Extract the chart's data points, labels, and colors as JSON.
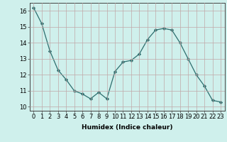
{
  "x": [
    0,
    1,
    2,
    3,
    4,
    5,
    6,
    7,
    8,
    9,
    10,
    11,
    12,
    13,
    14,
    15,
    16,
    17,
    18,
    19,
    20,
    21,
    22,
    23
  ],
  "y": [
    16.2,
    15.2,
    13.5,
    12.3,
    11.7,
    11.0,
    10.8,
    10.5,
    10.9,
    10.5,
    12.2,
    12.8,
    12.9,
    13.3,
    14.2,
    14.8,
    14.9,
    14.8,
    14.0,
    13.0,
    12.0,
    11.3,
    10.4,
    10.3
  ],
  "xlabel": "Humidex (Indice chaleur)",
  "xlim": [
    -0.5,
    23.5
  ],
  "ylim": [
    9.75,
    16.5
  ],
  "yticks": [
    10,
    11,
    12,
    13,
    14,
    15,
    16
  ],
  "xticks": [
    0,
    1,
    2,
    3,
    4,
    5,
    6,
    7,
    8,
    9,
    10,
    11,
    12,
    13,
    14,
    15,
    16,
    17,
    18,
    19,
    20,
    21,
    22,
    23
  ],
  "line_color": "#2d6e6e",
  "marker_color": "#2d6e6e",
  "bg_color": "#cff0ec",
  "grid_color": "#c0a8a8",
  "label_fontsize": 6.5,
  "tick_fontsize": 6.0
}
